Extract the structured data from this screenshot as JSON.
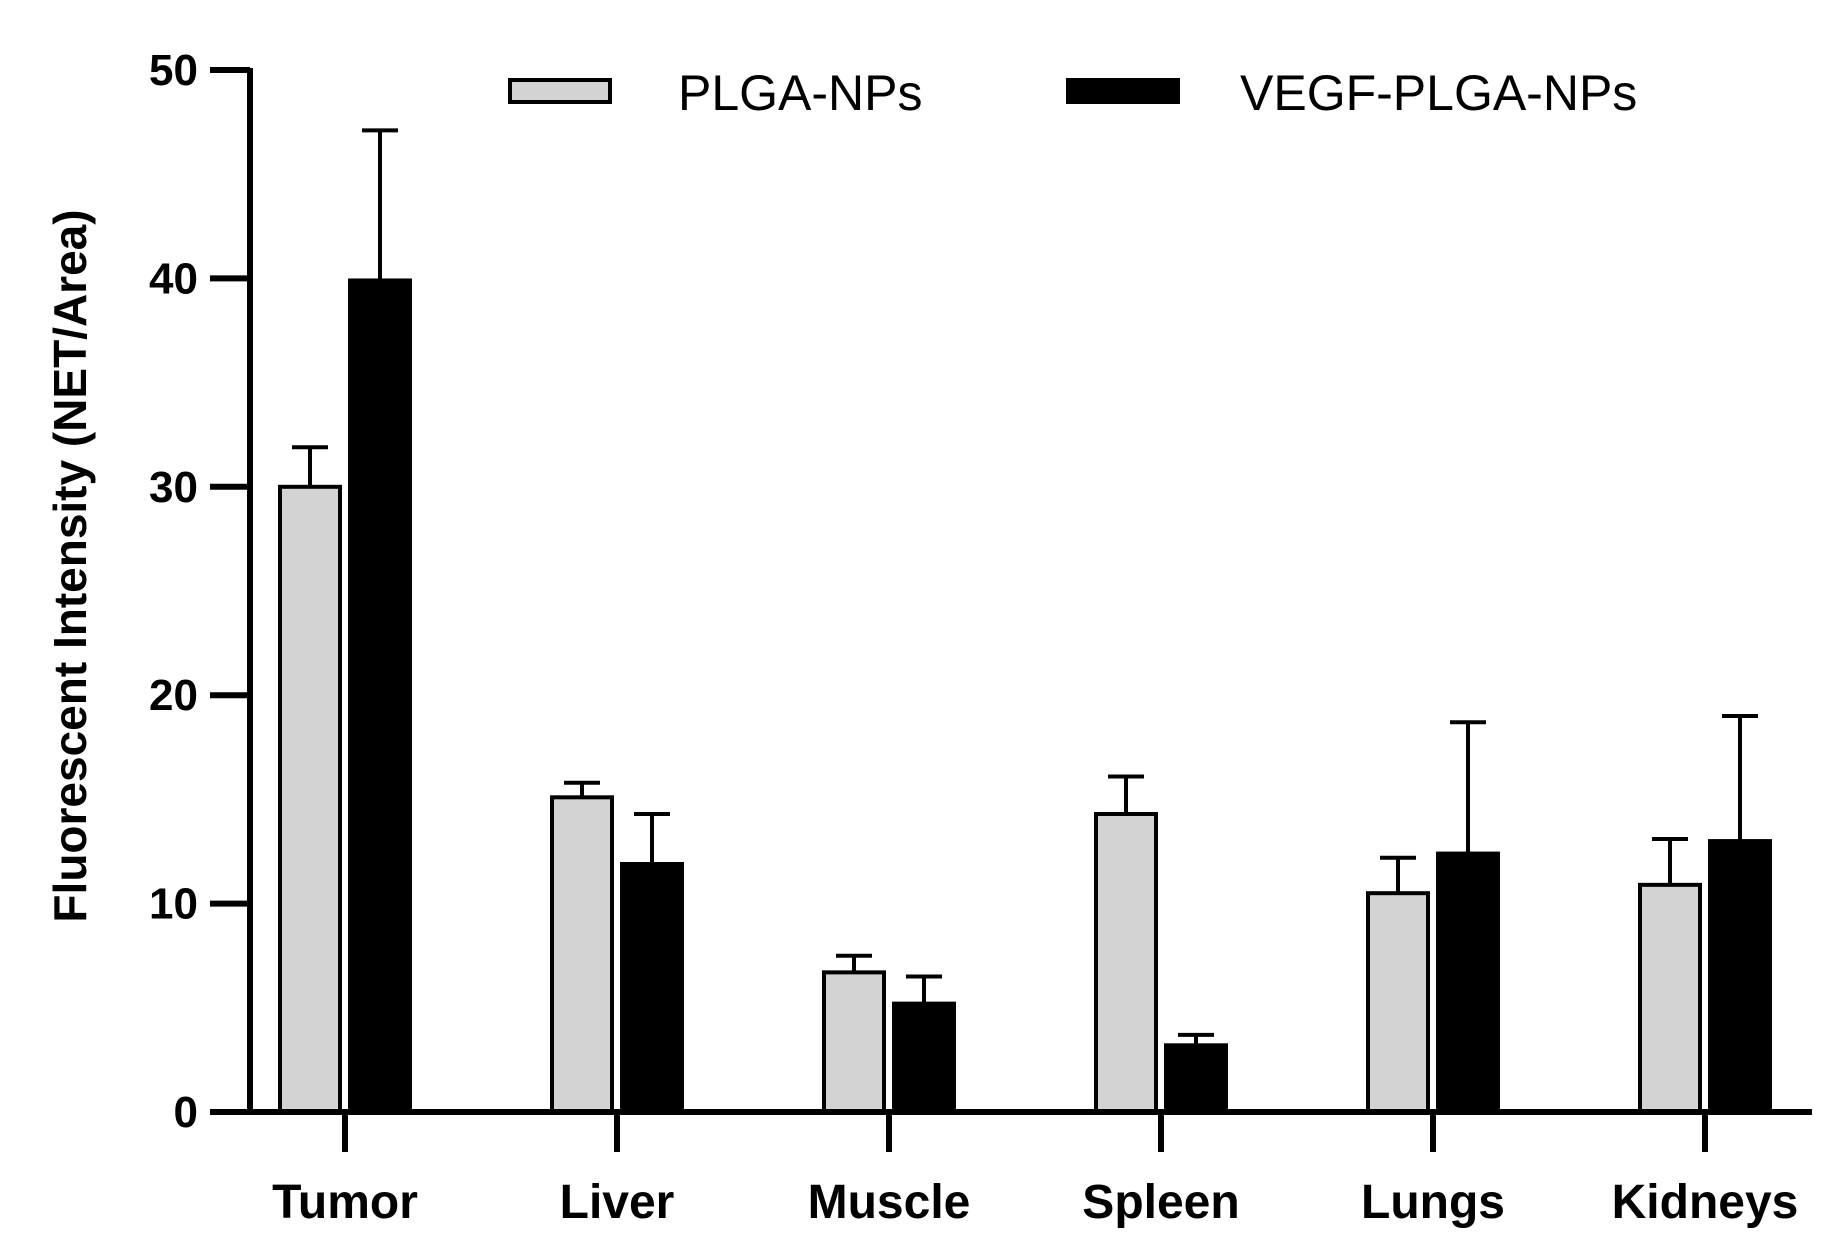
{
  "chart_data": {
    "type": "bar",
    "title": "",
    "xlabel": "",
    "ylabel": "Fluorescent Intensity (NET/Area)",
    "ylim": [
      0,
      50
    ],
    "yticks": [
      "0",
      "10",
      "20",
      "30",
      "40",
      "50"
    ],
    "categories": [
      "Tumor",
      "Liver",
      "Muscle",
      "Spleen",
      "Lungs",
      "Kidneys"
    ],
    "series": [
      {
        "name": "PLGA-NPs",
        "color": "#d3d3d3",
        "values": [
          30.0,
          15.1,
          6.7,
          14.3,
          10.5,
          10.9
        ],
        "error_upper": [
          31.9,
          15.8,
          7.5,
          16.1,
          12.2,
          13.1
        ]
      },
      {
        "name": "VEGF-PLGA-NPs",
        "color": "#000000",
        "values": [
          39.9,
          11.9,
          5.2,
          3.2,
          12.4,
          13.0
        ],
        "error_upper": [
          47.1,
          14.3,
          6.5,
          3.7,
          18.7,
          19.0
        ]
      }
    ],
    "legend_position": "top",
    "grid": false
  }
}
